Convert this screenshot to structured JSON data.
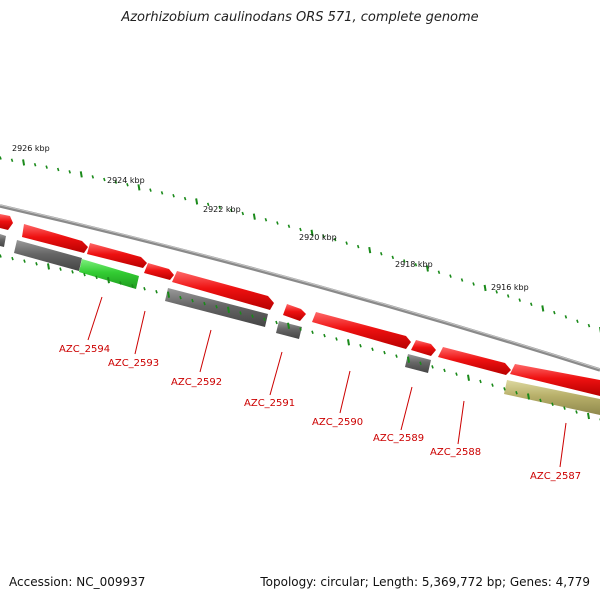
{
  "title": "Azorhizobium caulinodans ORS 571, complete genome",
  "footer": {
    "accession": "Accession: NC_009937",
    "summary": "Topology: circular; Length: 5,369,772 bp; Genes: 4,779"
  },
  "colors": {
    "gene_red": "#ee1111",
    "gene_gray": "#666666",
    "gene_green": "#33cc33",
    "gene_olive": "#b8b06a",
    "backbone": "#8a8a8a",
    "tick_green": "#1a8a1a",
    "label_red": "#cc0000"
  },
  "kbp_marks": [
    {
      "label": "2926 kbp"
    },
    {
      "label": "2924 kbp"
    },
    {
      "label": "2922 kbp"
    },
    {
      "label": "2920 kbp"
    },
    {
      "label": "2918 kbp"
    },
    {
      "label": "2916 kbp"
    }
  ],
  "gene_labels": [
    {
      "label": "AZC_2594"
    },
    {
      "label": "AZC_2593"
    },
    {
      "label": "AZC_2592"
    },
    {
      "label": "AZC_2591"
    },
    {
      "label": "AZC_2590"
    },
    {
      "label": "AZC_2589"
    },
    {
      "label": "AZC_2588"
    },
    {
      "label": "AZC_2587"
    }
  ]
}
